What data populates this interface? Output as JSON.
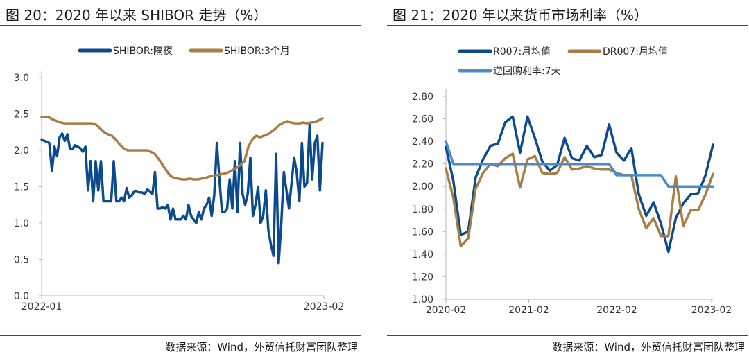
{
  "figures": [
    {
      "title": "图 20：2020 年以来 SHIBOR 走势（%）",
      "source": "数据来源：Wind，外贸信托财富团队整理"
    },
    {
      "title": "图 21：2020 年以来货币市场利率（%）",
      "source": "数据来源：Wind，外贸信托财富团队整理"
    }
  ],
  "colors": {
    "navy": "#0b4a8c",
    "bronze": "#a87d45",
    "lightblue": "#4a8cc9",
    "axis": "#b5b5b5",
    "rule": "#1f4e8c"
  },
  "chart_data": [
    {
      "type": "line",
      "title": "",
      "x_ticks": [
        "2022-01",
        "2023-02"
      ],
      "ylim": [
        0.0,
        3.0
      ],
      "y_ticks": [
        "0.0",
        "0.5",
        "1.0",
        "1.5",
        "2.0",
        "2.5",
        "3.0"
      ],
      "grid": false,
      "legend_position": "top",
      "series": [
        {
          "name": "SHIBOR:隔夜",
          "color": "#0b4a8c",
          "values": [
            2.15,
            2.13,
            2.12,
            2.1,
            1.72,
            2.05,
            1.92,
            2.18,
            2.23,
            2.13,
            2.22,
            2.02,
            2.02,
            2.07,
            2.05,
            2.03,
            1.98,
            2.05,
            1.45,
            1.85,
            1.3,
            1.85,
            1.45,
            1.85,
            1.3,
            1.3,
            1.3,
            1.3,
            1.85,
            1.3,
            1.3,
            1.35,
            1.3,
            1.48,
            1.35,
            1.38,
            1.44,
            1.44,
            1.42,
            1.42,
            1.4,
            1.46,
            1.44,
            1.4,
            1.7,
            1.2,
            1.2,
            1.22,
            1.2,
            1.25,
            1.05,
            1.2,
            1.05,
            1.05,
            1.05,
            1.1,
            1.05,
            1.25,
            1.1,
            1.05,
            1.0,
            1.15,
            1.05,
            1.2,
            1.25,
            1.35,
            1.1,
            1.38,
            2.1,
            1.6,
            1.15,
            1.15,
            1.2,
            1.6,
            1.2,
            1.85,
            1.15,
            2.1,
            1.4,
            1.25,
            1.4,
            1.9,
            1.1,
            1.25,
            1.5,
            1.0,
            1.1,
            1.45,
            0.9,
            0.7,
            0.55,
            1.95,
            0.45,
            1.0,
            1.7,
            1.45,
            1.2,
            1.55,
            1.9,
            1.7,
            1.3,
            2.1,
            1.5,
            1.55,
            2.35,
            1.6,
            2.1,
            2.2,
            1.45,
            2.1
          ]
        },
        {
          "name": "SHIBOR:3个月",
          "color": "#a87d45",
          "values": [
            2.46,
            2.46,
            2.45,
            2.42,
            2.4,
            2.38,
            2.37,
            2.37,
            2.37,
            2.37,
            2.37,
            2.37,
            2.37,
            2.37,
            2.35,
            2.3,
            2.25,
            2.22,
            2.2,
            2.15,
            2.08,
            2.03,
            2.0,
            2.0,
            2.0,
            2.0,
            2.0,
            2.0,
            1.98,
            1.95,
            1.88,
            1.8,
            1.72,
            1.65,
            1.62,
            1.61,
            1.6,
            1.6,
            1.61,
            1.6,
            1.6,
            1.61,
            1.62,
            1.64,
            1.65,
            1.66,
            1.67,
            1.68,
            1.7,
            1.73,
            1.76,
            1.8,
            1.85,
            2.05,
            2.15,
            2.2,
            2.18,
            2.2,
            2.22,
            2.26,
            2.3,
            2.35,
            2.38,
            2.4,
            2.38,
            2.37,
            2.37,
            2.38,
            2.37,
            2.38,
            2.39,
            2.41,
            2.44
          ]
        }
      ]
    },
    {
      "type": "line",
      "title": "",
      "x_ticks": [
        "2020-02",
        "2021-02",
        "2022-02",
        "2023-02"
      ],
      "ylim": [
        1.0,
        2.8
      ],
      "y_ticks": [
        "1.00",
        "1.20",
        "1.40",
        "1.60",
        "1.80",
        "2.00",
        "2.20",
        "2.40",
        "2.60",
        "2.80"
      ],
      "grid": false,
      "legend_position": "top",
      "series": [
        {
          "name": "R007:月均值",
          "color": "#0b4a8c",
          "values": [
            2.35,
            2.05,
            1.57,
            1.6,
            2.08,
            2.24,
            2.36,
            2.38,
            2.57,
            2.62,
            2.3,
            2.62,
            2.43,
            2.22,
            2.14,
            2.19,
            2.43,
            2.25,
            2.23,
            2.36,
            2.26,
            2.28,
            2.55,
            2.3,
            2.23,
            2.34,
            1.93,
            1.74,
            1.86,
            1.67,
            1.42,
            1.72,
            1.85,
            1.93,
            1.94,
            2.1,
            2.37
          ]
        },
        {
          "name": "DR007:月均值",
          "color": "#a87d45",
          "values": [
            2.16,
            1.9,
            1.47,
            1.54,
            1.98,
            2.12,
            2.2,
            2.18,
            2.25,
            2.29,
            1.99,
            2.24,
            2.27,
            2.12,
            2.11,
            2.12,
            2.26,
            2.15,
            2.16,
            2.18,
            2.16,
            2.15,
            2.15,
            2.12,
            2.1,
            2.1,
            1.8,
            1.63,
            1.72,
            1.56,
            1.56,
            2.09,
            1.65,
            1.79,
            1.79,
            1.93,
            2.11
          ]
        },
        {
          "name": "逆回购利率:7天",
          "color": "#4a8cc9",
          "values": [
            2.4,
            2.2,
            2.2,
            2.2,
            2.2,
            2.2,
            2.2,
            2.2,
            2.2,
            2.2,
            2.2,
            2.2,
            2.2,
            2.2,
            2.2,
            2.2,
            2.2,
            2.2,
            2.2,
            2.2,
            2.2,
            2.2,
            2.2,
            2.1,
            2.1,
            2.1,
            2.1,
            2.1,
            2.1,
            2.1,
            2.0,
            2.0,
            2.0,
            2.0,
            2.0,
            2.0,
            2.0
          ]
        }
      ]
    }
  ]
}
